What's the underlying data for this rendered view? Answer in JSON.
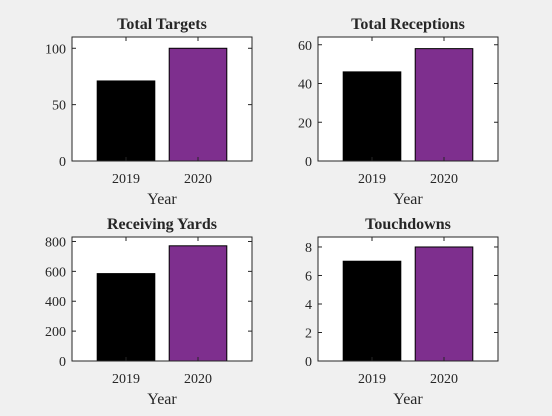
{
  "figure": {
    "background": "#f0f0f0",
    "plot_background": "#ffffff",
    "axis_color": "#262626"
  },
  "chart_data": [
    {
      "type": "bar",
      "title": "Total Targets",
      "xlabel": "Year",
      "ylabel": "",
      "categories": [
        "2019",
        "2020"
      ],
      "values": [
        71,
        100
      ],
      "colors": [
        "#000000",
        "#7e2f8e"
      ],
      "ylim": [
        0,
        110
      ],
      "yticks": [
        0,
        50,
        100
      ],
      "grid": false
    },
    {
      "type": "bar",
      "title": "Total Receptions",
      "xlabel": "Year",
      "ylabel": "",
      "categories": [
        "2019",
        "2020"
      ],
      "values": [
        46,
        58
      ],
      "colors": [
        "#000000",
        "#7e2f8e"
      ],
      "ylim": [
        0,
        64
      ],
      "yticks": [
        0,
        20,
        40,
        60
      ],
      "grid": false
    },
    {
      "type": "bar",
      "title": "Receiving Yards",
      "xlabel": "Year",
      "ylabel": "",
      "categories": [
        "2019",
        "2020"
      ],
      "values": [
        585,
        771
      ],
      "colors": [
        "#000000",
        "#7e2f8e"
      ],
      "ylim": [
        0,
        830
      ],
      "yticks": [
        0,
        200,
        400,
        600,
        800
      ],
      "grid": false
    },
    {
      "type": "bar",
      "title": "Touchdowns",
      "xlabel": "Year",
      "ylabel": "",
      "categories": [
        "2019",
        "2020"
      ],
      "values": [
        7,
        8
      ],
      "colors": [
        "#000000",
        "#7e2f8e"
      ],
      "ylim": [
        0,
        8.7
      ],
      "yticks": [
        0,
        2,
        4,
        6,
        8
      ],
      "grid": false
    }
  ]
}
